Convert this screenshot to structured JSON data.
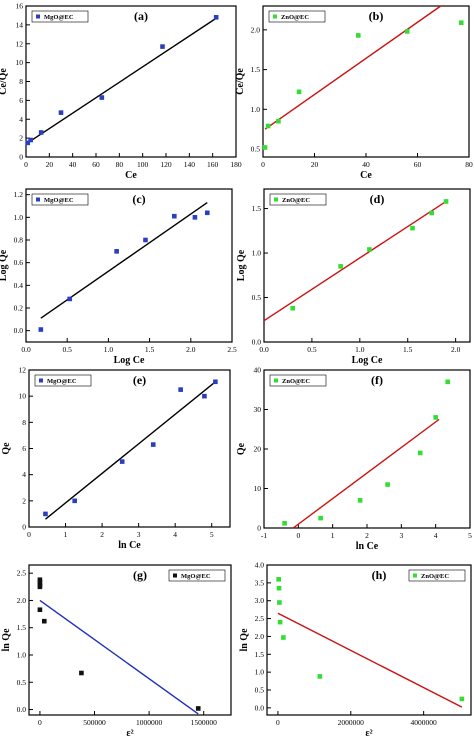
{
  "chart_data": [
    {
      "type": "scatter",
      "panel_label": "(a)",
      "xlabel": "Ce",
      "ylabel": "Ce/Qe",
      "legend": "MgO@EC",
      "legend_position": "top-left",
      "marker": "square",
      "marker_color": "#2a3fbf",
      "fit_color": "#000000",
      "xlim": [
        0,
        180
      ],
      "ylim": [
        0,
        16
      ],
      "xticks": [
        0,
        20,
        40,
        60,
        80,
        100,
        120,
        140,
        160,
        180
      ],
      "yticks": [
        0,
        2,
        4,
        6,
        8,
        10,
        12,
        14,
        16
      ],
      "x": [
        1.5,
        4,
        13,
        30,
        65,
        117,
        163
      ],
      "y": [
        1.5,
        1.8,
        2.6,
        4.7,
        6.3,
        11.7,
        14.8
      ],
      "fit_line": [
        [
          1.5,
          1.5
        ],
        [
          163,
          14.7
        ]
      ]
    },
    {
      "type": "scatter",
      "panel_label": "(b)",
      "xlabel": "Ce",
      "ylabel": "Ce/Qe",
      "legend": "ZnO@EC",
      "legend_position": "top-left",
      "marker": "square",
      "marker_color": "#33dd33",
      "fit_color": "#cc1111",
      "xlim": [
        0,
        80
      ],
      "ylim": [
        0.4,
        2.3
      ],
      "xticks": [
        0,
        20,
        40,
        60,
        80
      ],
      "yticks": [
        0.5,
        1.0,
        1.5,
        2.0
      ],
      "x": [
        0.8,
        2,
        6,
        14,
        37,
        56,
        77
      ],
      "y": [
        0.52,
        0.79,
        0.85,
        1.22,
        1.93,
        1.98,
        2.09
      ],
      "fit_line": [
        [
          0.8,
          0.75
        ],
        [
          69,
          2.3
        ]
      ]
    },
    {
      "type": "scatter",
      "panel_label": "(c)",
      "xlabel": "Log Ce",
      "ylabel": "Log Qe",
      "legend": "MgO@EC",
      "legend_position": "top-left",
      "marker": "square",
      "marker_color": "#2a3fbf",
      "fit_color": "#000000",
      "xlim": [
        0,
        2.5
      ],
      "ylim": [
        -0.1,
        1.25
      ],
      "xticks": [
        0.0,
        0.5,
        1.0,
        1.5,
        2.0,
        2.5
      ],
      "yticks": [
        0.0,
        0.2,
        0.4,
        0.6,
        0.8,
        1.0,
        1.2
      ],
      "x": [
        0.18,
        0.53,
        1.1,
        1.45,
        1.8,
        2.05,
        2.2
      ],
      "y": [
        0.01,
        0.28,
        0.7,
        0.8,
        1.01,
        1.0,
        1.04
      ],
      "fit_line": [
        [
          0.18,
          0.11
        ],
        [
          2.2,
          1.13
        ]
      ]
    },
    {
      "type": "scatter",
      "panel_label": "(d)",
      "xlabel": "Log Ce",
      "ylabel": "Log Qe",
      "legend": "ZnO@EC",
      "legend_position": "top-left",
      "marker": "square",
      "marker_color": "#33dd33",
      "fit_color": "#cc1111",
      "xlim": [
        0,
        2.15
      ],
      "ylim": [
        0,
        1.72
      ],
      "xticks": [
        0.0,
        0.5,
        1.0,
        1.5,
        2.0
      ],
      "yticks": [
        0.0,
        0.5,
        1.0,
        1.5
      ],
      "x": [
        0.3,
        0.8,
        1.1,
        1.55,
        1.75,
        1.9
      ],
      "y": [
        0.38,
        0.85,
        1.04,
        1.28,
        1.45,
        1.58
      ],
      "fit_line": [
        [
          0,
          0.24
        ],
        [
          1.9,
          1.58
        ]
      ]
    },
    {
      "type": "scatter",
      "panel_label": "(e)",
      "xlabel": "ln Ce",
      "ylabel": "Qe",
      "legend": "MgO@EC",
      "legend_position": "top-left",
      "marker": "square",
      "marker_color": "#2a3fbf",
      "fit_color": "#000000",
      "xlim": [
        0,
        5.5
      ],
      "ylim": [
        0,
        12
      ],
      "xticks": [
        0,
        1,
        2,
        3,
        4,
        5
      ],
      "yticks": [
        0,
        2,
        4,
        6,
        8,
        10,
        12
      ],
      "x": [
        0.45,
        1.25,
        2.55,
        3.4,
        4.15,
        4.8,
        5.1
      ],
      "y": [
        1.0,
        2.0,
        5.0,
        6.3,
        10.5,
        10.0,
        11.1
      ],
      "fit_line": [
        [
          0.45,
          0.6
        ],
        [
          5.1,
          11.1
        ]
      ]
    },
    {
      "type": "scatter",
      "panel_label": "(f)",
      "xlabel": "ln Ce",
      "ylabel": "Qe",
      "legend": "ZnO@EC",
      "legend_position": "top-left",
      "marker": "square",
      "marker_color": "#33dd33",
      "fit_color": "#cc1111",
      "xlim": [
        -1,
        5
      ],
      "ylim": [
        0,
        40
      ],
      "xticks": [
        -1,
        0,
        1,
        2,
        3,
        4,
        5
      ],
      "yticks": [
        0,
        10,
        20,
        30,
        40
      ],
      "x": [
        -0.4,
        0.65,
        1.8,
        2.6,
        3.55,
        4.0,
        4.35
      ],
      "y": [
        1.2,
        2.5,
        7.0,
        11.0,
        19.0,
        28.0,
        37.0
      ],
      "fit_line": [
        [
          -0.15,
          0
        ],
        [
          4.1,
          27.5
        ]
      ]
    },
    {
      "type": "scatter",
      "panel_label": "(g)",
      "xlabel": "ε²",
      "ylabel": "ln Qe",
      "legend": "MgO@EC",
      "legend_position": "top-right",
      "marker": "square",
      "marker_color": "#111111",
      "fit_color": "#1f2fbf",
      "xlim": [
        -100000,
        1750000
      ],
      "ylim": [
        -0.1,
        2.65
      ],
      "xticks": [
        0,
        500000,
        1000000,
        1500000
      ],
      "xtick_labels": [
        "0",
        "500000",
        "1000000",
        "1500000"
      ],
      "yticks": [
        0.0,
        0.5,
        1.0,
        1.5,
        2.0,
        2.5
      ],
      "x": [
        0,
        0,
        0,
        0,
        0,
        40000,
        380000,
        1450000
      ],
      "y": [
        2.38,
        2.33,
        2.28,
        2.25,
        1.83,
        1.62,
        0.67,
        0.02
      ],
      "fit_line": [
        [
          0,
          2.0
        ],
        [
          1450000,
          -0.08
        ]
      ]
    },
    {
      "type": "scatter",
      "panel_label": "(h)",
      "xlabel": "ε²",
      "ylabel": "ln Qe",
      "legend": "ZnO@EC",
      "legend_position": "top-right",
      "marker": "square",
      "marker_color": "#33dd33",
      "fit_color": "#cc1111",
      "xlim": [
        -300000,
        5300000
      ],
      "ylim": [
        -0.2,
        4.0
      ],
      "xticks": [
        0,
        2000000,
        4000000
      ],
      "xtick_labels": [
        "0",
        "2000000",
        "4000000"
      ],
      "yticks": [
        0.0,
        0.5,
        1.0,
        1.5,
        2.0,
        2.5,
        3.0,
        3.5,
        4.0
      ],
      "x": [
        20000,
        30000,
        40000,
        60000,
        150000,
        1150000,
        5050000
      ],
      "y": [
        3.6,
        3.35,
        2.95,
        2.4,
        1.97,
        0.88,
        0.25
      ],
      "fit_line": [
        [
          0,
          2.65
        ],
        [
          5050000,
          0.02
        ]
      ]
    }
  ]
}
